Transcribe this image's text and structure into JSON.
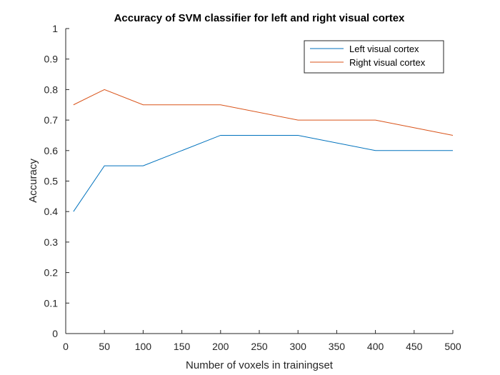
{
  "chart_data": {
    "type": "line",
    "title": "Accuracy of SVM classifier for left and right visual cortex",
    "xlabel": "Number of voxels in trainingset",
    "ylabel": "Accuracy",
    "xlim": [
      0,
      500
    ],
    "ylim": [
      0,
      1
    ],
    "xticks": [
      0,
      50,
      100,
      150,
      200,
      250,
      300,
      350,
      400,
      450,
      500
    ],
    "yticks": [
      0,
      0.1,
      0.2,
      0.3,
      0.4,
      0.5,
      0.6,
      0.7,
      0.8,
      0.9,
      1
    ],
    "xtick_labels": [
      "0",
      "50",
      "100",
      "150",
      "200",
      "250",
      "300",
      "350",
      "400",
      "450",
      "500"
    ],
    "ytick_labels": [
      "0",
      "0.1",
      "0.2",
      "0.3",
      "0.4",
      "0.5",
      "0.6",
      "0.7",
      "0.8",
      "0.9",
      "1"
    ],
    "grid": false,
    "legend_position": "top-right",
    "series": [
      {
        "name": "Left visual cortex",
        "color": "#0072BD",
        "x": [
          10,
          50,
          100,
          200,
          300,
          400,
          500
        ],
        "y": [
          0.4,
          0.55,
          0.55,
          0.65,
          0.65,
          0.6,
          0.6
        ]
      },
      {
        "name": "Right visual cortex",
        "color": "#D95319",
        "x": [
          10,
          50,
          100,
          200,
          300,
          400,
          500
        ],
        "y": [
          0.75,
          0.8,
          0.75,
          0.75,
          0.7,
          0.7,
          0.65
        ]
      }
    ]
  }
}
